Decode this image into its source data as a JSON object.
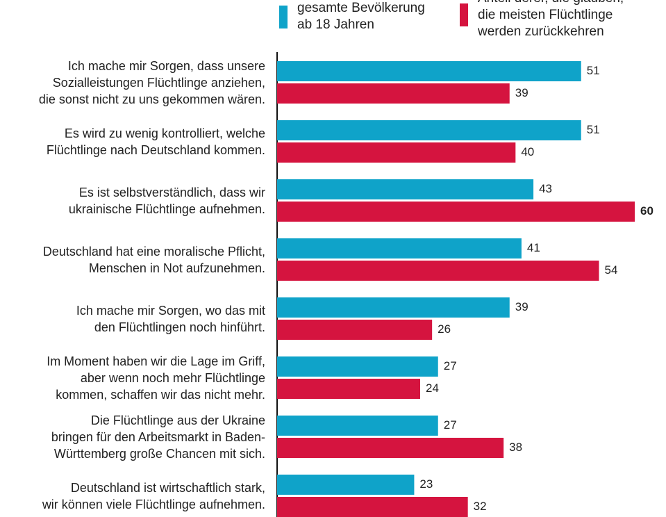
{
  "chart_data": {
    "type": "hbar",
    "categories": [
      "Ich mache mir Sorgen, dass unsere\nSozialleistungen Flüchtlinge anziehen,\ndie sonst nicht zu uns gekommen wären.",
      "Es wird zu wenig kontrolliert, welche\nFlüchtlinge nach Deutschland kommen.",
      "Es ist selbstverständlich, dass wir\nukrainische Flüchtlinge aufnehmen.",
      "Deutschland hat eine moralische Pflicht,\nMenschen in Not aufzunehmen.",
      "Ich mache mir Sorgen, wo das mit\nden Flüchtlingen noch hinführt.",
      "Im Moment haben wir die Lage im Griff,\naber wenn noch mehr Flüchtlinge\nkommen, schaffen wir das nicht mehr.",
      "Die Flüchtlinge aus der Ukraine\nbringen für den Arbeitsmarkt in Baden-\nWürttemberg große Chancen mit sich.",
      "Deutschland ist wirtschaftlich stark,\nwir können viele Flüchtlinge aufnehmen."
    ],
    "series": [
      {
        "name": "gesamte Bevölkerung\nab 18 Jahren",
        "color": "#0fa3c9",
        "values": [
          51,
          51,
          43,
          41,
          39,
          27,
          27,
          23
        ]
      },
      {
        "name": "Anteil derer, die glauben,\ndie meisten Flüchtlinge\nwerden zurückkehren",
        "color": "#d5143f",
        "values": [
          39,
          40,
          60,
          54,
          26,
          24,
          38,
          32
        ]
      }
    ],
    "xlim": [
      0,
      60
    ]
  }
}
